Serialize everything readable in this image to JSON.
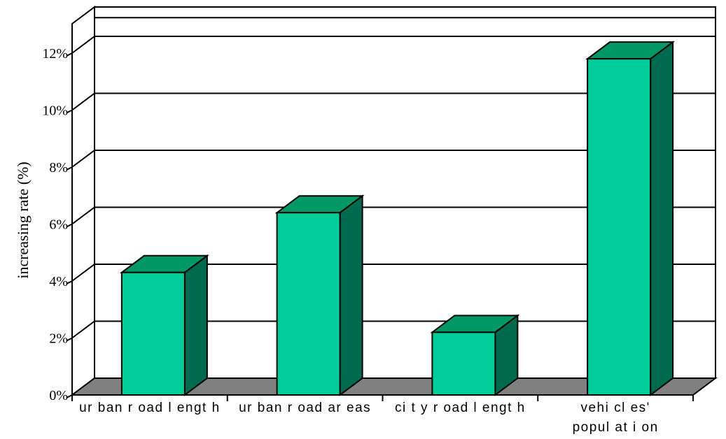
{
  "chart_data": {
    "type": "bar",
    "title": "",
    "xlabel": "",
    "ylabel": "increasing rate (%)",
    "categories": [
      [
        "ur ban  r oad  l engt h"
      ],
      [
        "ur ban  r oad  ar eas"
      ],
      [
        "ci t y  r oad  l engt h"
      ],
      [
        "vehi cl es'",
        "popul at i on"
      ]
    ],
    "values": [
      4.3,
      6.4,
      2.2,
      11.8
    ],
    "yticks": [
      "0%",
      "2%",
      "4%",
      "6%",
      "8%",
      "10%",
      "12%"
    ],
    "ylim": [
      0,
      13
    ],
    "grid": true,
    "three_d": true,
    "colors": {
      "bar_front": "#00CC99",
      "bar_top": "#009966",
      "bar_side": "#006A4E",
      "floor": "#808080",
      "grid": "#000000"
    }
  }
}
